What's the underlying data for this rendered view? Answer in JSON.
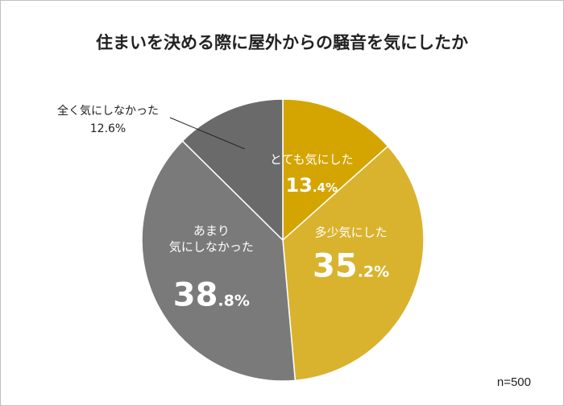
{
  "chart_data": {
    "type": "pie",
    "title": "住まいを決める際に屋外からの騒音を気にしたか",
    "slices": [
      {
        "label": "とても気にした",
        "value": 13.4,
        "display": [
          "13",
          ".4%"
        ],
        "color": "#d4a500"
      },
      {
        "label": "多少気にした",
        "value": 35.2,
        "display": [
          "35",
          ".2%"
        ],
        "color": "#d9b32e"
      },
      {
        "label": "あまり気にしなかった",
        "label_lines": [
          "あまり",
          "気にしなかった"
        ],
        "value": 38.8,
        "display": [
          "38",
          ".8%"
        ],
        "color": "#7a7a7a"
      },
      {
        "label": "全く気にしなかった",
        "value": 12.6,
        "display": "12.6%",
        "color": "#6a6a6a"
      }
    ],
    "start_angle": "12 o'clock",
    "direction": "clockwise",
    "note": "n=500"
  }
}
